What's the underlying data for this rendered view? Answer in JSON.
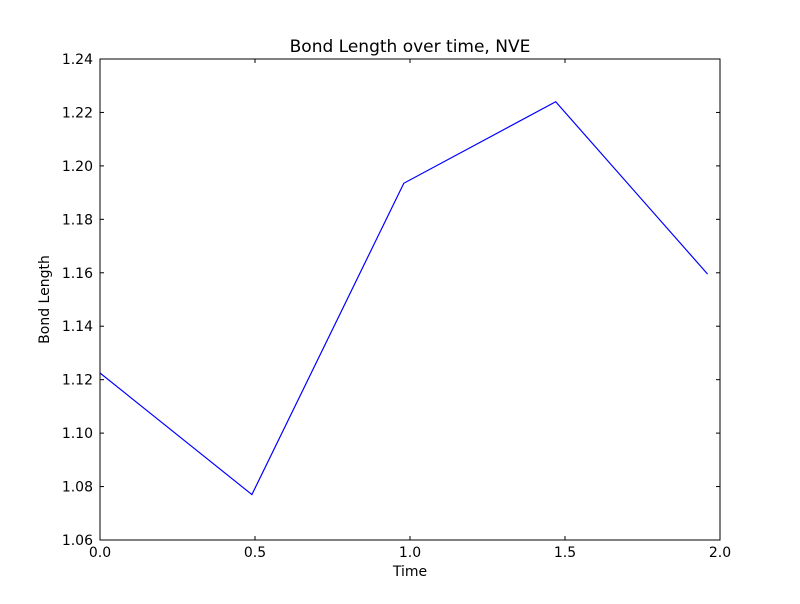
{
  "chart_data": {
    "type": "line",
    "title": "Bond Length over time, NVE",
    "xlabel": "Time",
    "ylabel": "Bond Length",
    "xlim": [
      0.0,
      2.0
    ],
    "ylim": [
      1.06,
      1.24
    ],
    "x_ticks": [
      "0.0",
      "0.5",
      "1.0",
      "1.5",
      "2.0"
    ],
    "y_ticks": [
      "1.06",
      "1.08",
      "1.10",
      "1.12",
      "1.14",
      "1.16",
      "1.18",
      "1.20",
      "1.22",
      "1.24"
    ],
    "grid": false,
    "series": [
      {
        "color": "#0000ff",
        "x": [
          0.0,
          0.49,
          0.98,
          1.47,
          1.96
        ],
        "y": [
          1.1225,
          1.077,
          1.1935,
          1.224,
          1.1595
        ]
      }
    ]
  }
}
